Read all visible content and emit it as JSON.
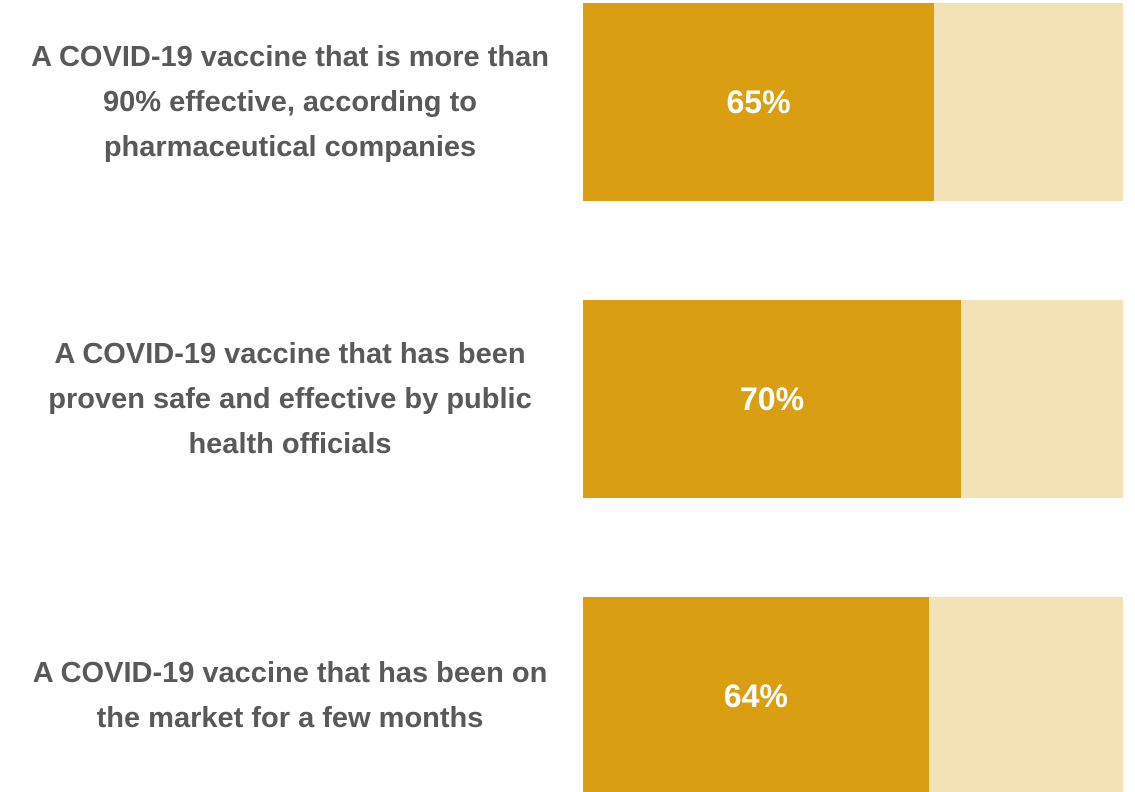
{
  "chart_data": {
    "type": "bar",
    "orientation": "horizontal",
    "categories": [
      "A COVID-19 vaccine that is more than 90% effective, according to pharmaceutical companies",
      "A COVID-19 vaccine that has been proven safe and effective by public health officials",
      "A COVID-19 vaccine that has been on the market for a few months"
    ],
    "values": [
      65,
      70,
      64
    ],
    "value_labels": [
      "65%",
      "70%",
      "64%"
    ],
    "color": "#d99e11",
    "track_color": "#f3e2b6",
    "xlim": [
      0,
      100
    ]
  }
}
